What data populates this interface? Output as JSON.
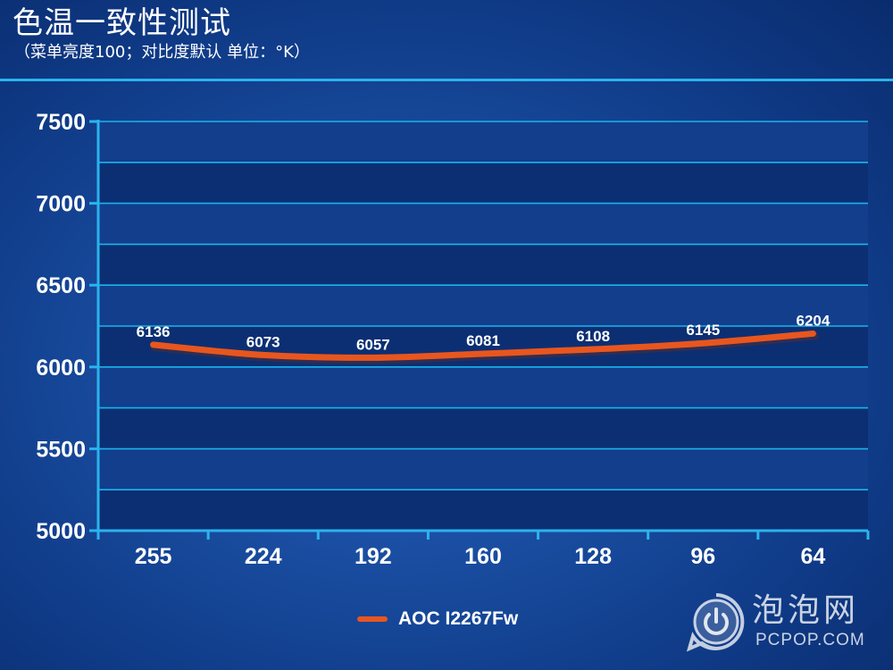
{
  "header": {
    "title": "色温一致性测试",
    "subtitle": "（菜单亮度100；对比度默认 单位：°K）"
  },
  "watermark": {
    "cn": "泡泡网",
    "en": "PCPOP.COM",
    "icon": "power-icon"
  },
  "colors": {
    "series": "#e8561e",
    "grid": "#1ab4ec",
    "axis": "#2bb3ee",
    "plot_band_dark": "#0c2f73",
    "plot_band_light": "#123e8c"
  },
  "chart_data": {
    "type": "line",
    "categories": [
      "255",
      "224",
      "192",
      "160",
      "128",
      "96",
      "64"
    ],
    "series": [
      {
        "name": "AOC I2267Fw",
        "values": [
          6136,
          6073,
          6057,
          6081,
          6108,
          6145,
          6204
        ]
      }
    ],
    "ylim": [
      5000,
      7500
    ],
    "yticks": [
      "5000",
      "5500",
      "6000",
      "6500",
      "7000",
      "7500"
    ],
    "data_labels": [
      "6136",
      "6073",
      "6057",
      "6081",
      "6108",
      "6145",
      "6204"
    ],
    "grid": true,
    "legend_position": "bottom-center",
    "title": "色温一致性测试",
    "subtitle": "（菜单亮度100；对比度默认 单位：°K）",
    "xlabel": "",
    "ylabel": ""
  }
}
